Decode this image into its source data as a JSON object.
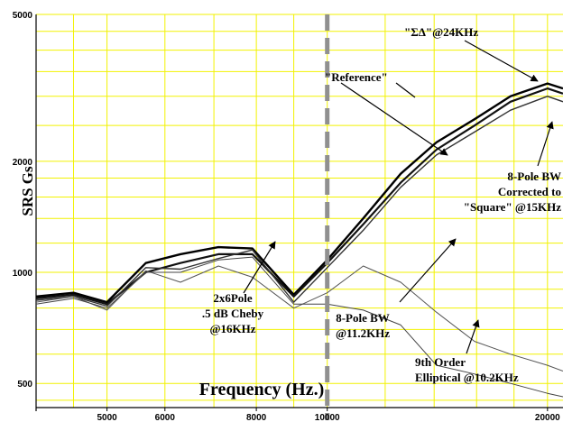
{
  "chart_data": {
    "type": "line",
    "xlabel": "Frequency (Hz.)",
    "ylabel": "SRS Gs",
    "x_scale": "log",
    "y_scale": "log",
    "xlim": [
      4000,
      21000
    ],
    "ylim": [
      430,
      5000
    ],
    "x_ticks": [
      5000,
      6000,
      8000,
      10000,
      20000
    ],
    "x_tick_labels": [
      "5000",
      "6000",
      "8000",
      "10000",
      "20000"
    ],
    "y_ticks": [
      500,
      1000,
      2000,
      5000
    ],
    "y_tick_labels": [
      "500",
      "1000",
      "2000",
      "5000"
    ],
    "grid": true,
    "grid_color": "#f2f200",
    "marker_line": {
      "x": 10000,
      "style": "dashed",
      "color": "#909090"
    },
    "series": [
      {
        "x": [
          4000,
          4500,
          5000,
          5650,
          6300,
          7100,
          7900,
          9000,
          10000,
          11200,
          12600,
          14100,
          15900,
          17800,
          20000,
          21000
        ],
        "values": [
          860,
          880,
          830,
          1060,
          1120,
          1170,
          1160,
          870,
          1080,
          1400,
          1850,
          2250,
          2600,
          3000,
          3250,
          3150
        ]
      },
      {
        "x": [
          4000,
          4500,
          5000,
          5650,
          6300,
          7100,
          7900,
          9000,
          10000,
          11200,
          12600,
          14100,
          15900,
          17800,
          20000,
          21000
        ],
        "values": [
          850,
          870,
          820,
          1000,
          1060,
          1120,
          1120,
          860,
          1060,
          1350,
          1750,
          2150,
          2500,
          2900,
          3150,
          3050
        ]
      },
      {
        "x": [
          4000,
          4500,
          5000,
          5650,
          6300,
          7100,
          7900,
          9000,
          10000,
          11200,
          12600,
          14100,
          15900,
          17800,
          20000,
          21000
        ],
        "values": [
          840,
          860,
          810,
          1030,
          1020,
          1090,
          1150,
          830,
          1030,
          1300,
          1700,
          2080,
          2400,
          2750,
          3000,
          2900
        ]
      },
      {
        "x": [
          4000,
          4500,
          5000,
          5650,
          6300,
          7100,
          7900,
          9000,
          10000,
          11200,
          12600,
          14100,
          15900,
          17800,
          20000,
          21000
        ],
        "values": [
          830,
          860,
          790,
          1010,
          940,
          1040,
          970,
          800,
          880,
          1040,
          940,
          780,
          650,
          600,
          560,
          540
        ]
      },
      {
        "x": [
          4000,
          4500,
          5000,
          5650,
          6300,
          7100,
          7900,
          9000,
          10000,
          11200,
          12600,
          14100,
          15900,
          17800,
          20000,
          21000
        ],
        "values": [
          820,
          850,
          800,
          1000,
          1000,
          1080,
          1100,
          820,
          820,
          790,
          720,
          560,
          530,
          500,
          470,
          460
        ]
      }
    ],
    "annotations": [
      {
        "text": [
          "\"ΣΔ\"@24KHz"
        ],
        "color": "#000000"
      },
      {
        "text": [
          "\"Reference\""
        ],
        "color": "#000000"
      },
      {
        "text": [
          "8-Pole BW",
          "Corrected to",
          "\"Square\" @15KHz"
        ],
        "color": "#000000"
      },
      {
        "text": [
          "2x6Pole",
          ".5 dB Cheby",
          "@16KHz"
        ],
        "color": "#000000"
      },
      {
        "text": [
          "8-Pole BW",
          "@11.2KHz"
        ],
        "color": "#000000"
      },
      {
        "text": [
          "9th Order",
          "Elliptical @10.2KHz"
        ],
        "color": "#000000"
      }
    ]
  }
}
